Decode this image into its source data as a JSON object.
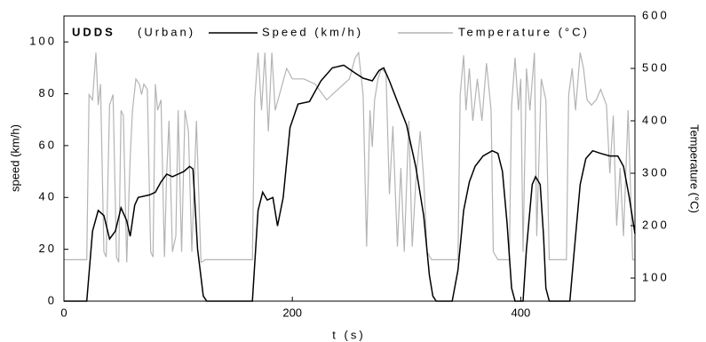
{
  "chart_data": {
    "type": "line",
    "title": "UDDS",
    "subtitle": "(Urban)",
    "x_label": "t (s)",
    "y_label": "speed (km/h)",
    "y2_label": "Temperature (°C)",
    "xlim": [
      0,
      500
    ],
    "xticks": [
      0,
      200,
      400
    ],
    "ylim": [
      0,
      110
    ],
    "yticks": [
      0,
      20,
      40,
      60,
      80,
      100
    ],
    "y2lim": [
      56,
      600
    ],
    "y2ticks": [
      100,
      200,
      300,
      400,
      500,
      600
    ],
    "series": [
      {
        "name": "Speed (km/h)",
        "color": "#000000",
        "x": [
          0,
          20,
          25,
          30,
          35,
          40,
          45,
          50,
          55,
          58,
          62,
          65,
          75,
          80,
          85,
          90,
          95,
          100,
          105,
          110,
          113,
          117,
          122,
          125,
          165,
          170,
          174,
          178,
          183,
          187,
          192,
          198,
          205,
          215,
          225,
          235,
          245,
          255,
          262,
          270,
          276,
          280,
          285,
          292,
          300,
          308,
          315,
          320,
          323,
          326,
          340,
          345,
          350,
          355,
          360,
          367,
          375,
          380,
          384,
          388,
          392,
          395,
          402,
          405,
          410,
          413,
          417,
          420,
          422,
          425,
          443,
          447,
          452,
          457,
          463,
          470,
          478,
          485,
          490,
          495,
          500
        ],
        "values": [
          0,
          0,
          27,
          35,
          33,
          24,
          27,
          36,
          31,
          25,
          37,
          40,
          41,
          42,
          46,
          49,
          48,
          49,
          50,
          52,
          51,
          20,
          2,
          0,
          0,
          35,
          42,
          39,
          40,
          29,
          40,
          67,
          76,
          77,
          85,
          90,
          91,
          88,
          86,
          85,
          89,
          90,
          85,
          77,
          68,
          52,
          33,
          10,
          2,
          0,
          0,
          12,
          35,
          46,
          52,
          56,
          58,
          57,
          50,
          30,
          5,
          0,
          0,
          20,
          45,
          48,
          45,
          25,
          5,
          0,
          0,
          20,
          45,
          55,
          58,
          57,
          56,
          56,
          52,
          40,
          26
        ]
      },
      {
        "name": "Temperature (°C)",
        "color": "#b4b4b4",
        "axis": "y2",
        "x": [
          0,
          20,
          22,
          25,
          28,
          30,
          32,
          35,
          37,
          40,
          43,
          46,
          48,
          50,
          52,
          55,
          58,
          60,
          63,
          66,
          68,
          70,
          73,
          76,
          78,
          80,
          82,
          85,
          88,
          90,
          92,
          95,
          98,
          100,
          103,
          106,
          109,
          112,
          116,
          120,
          124,
          165,
          167,
          170,
          173,
          176,
          179,
          182,
          185,
          190,
          195,
          200,
          210,
          220,
          230,
          240,
          250,
          255,
          258,
          262,
          265,
          268,
          270,
          272,
          275,
          278,
          282,
          285,
          288,
          292,
          295,
          298,
          302,
          305,
          308,
          312,
          315,
          318,
          322,
          345,
          347,
          350,
          352,
          355,
          358,
          362,
          366,
          370,
          374,
          376,
          380,
          390,
          392,
          395,
          398,
          400,
          402,
          405,
          408,
          412,
          414,
          418,
          422,
          425,
          440,
          442,
          445,
          448,
          452,
          455,
          458,
          462,
          466,
          470,
          475,
          478,
          481,
          484,
          487,
          490,
          494,
          498,
          500
        ],
        "values": [
          135,
          135,
          450,
          440,
          530,
          430,
          470,
          150,
          140,
          430,
          450,
          140,
          130,
          420,
          410,
          130,
          330,
          420,
          480,
          470,
          450,
          470,
          460,
          150,
          140,
          470,
          420,
          440,
          140,
          300,
          400,
          150,
          180,
          420,
          150,
          420,
          380,
          150,
          400,
          130,
          135,
          135,
          440,
          530,
          420,
          530,
          380,
          530,
          420,
          460,
          500,
          480,
          480,
          470,
          440,
          460,
          480,
          520,
          530,
          450,
          160,
          420,
          350,
          440,
          480,
          500,
          490,
          260,
          390,
          160,
          310,
          150,
          400,
          160,
          280,
          380,
          290,
          150,
          135,
          135,
          450,
          525,
          420,
          500,
          400,
          480,
          400,
          510,
          420,
          150,
          135,
          135,
          430,
          520,
          420,
          480,
          150,
          500,
          420,
          530,
          180,
          480,
          440,
          135,
          135,
          450,
          500,
          420,
          530,
          500,
          440,
          430,
          440,
          460,
          430,
          300,
          410,
          200,
          310,
          180,
          420,
          135,
          135
        ]
      }
    ]
  }
}
